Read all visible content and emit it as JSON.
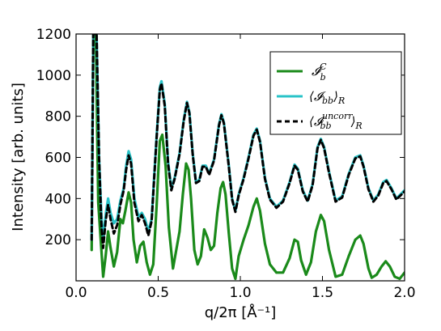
{
  "chart_data": {
    "type": "line",
    "xlabel": "q/2π [Å⁻¹]",
    "ylabel": "Intensity [arb. units]",
    "xlim": [
      0.0,
      2.0
    ],
    "ylim": [
      0,
      1200
    ],
    "x_ticks": [
      "0.0",
      "0.5",
      "1.0",
      "1.5",
      "2.0"
    ],
    "y_ticks": [
      "200",
      "400",
      "600",
      "800",
      "1000",
      "1200"
    ],
    "grid": false,
    "legend_position": "top-right",
    "series": [
      {
        "name": "𝓘_b^C",
        "legend_main": "𝓘",
        "legend_sup": "C",
        "legend_sub": "b",
        "color": "#1a8a1a",
        "style": "solid",
        "points": [
          [
            0.095,
            150
          ],
          [
            0.105,
            1200
          ],
          [
            0.12,
            1200
          ],
          [
            0.135,
            380
          ],
          [
            0.15,
            200
          ],
          [
            0.165,
            20
          ],
          [
            0.18,
            120
          ],
          [
            0.195,
            240
          ],
          [
            0.21,
            160
          ],
          [
            0.23,
            70
          ],
          [
            0.25,
            140
          ],
          [
            0.27,
            300
          ],
          [
            0.285,
            280
          ],
          [
            0.3,
            340
          ],
          [
            0.32,
            430
          ],
          [
            0.335,
            380
          ],
          [
            0.35,
            200
          ],
          [
            0.37,
            90
          ],
          [
            0.39,
            170
          ],
          [
            0.41,
            190
          ],
          [
            0.43,
            90
          ],
          [
            0.45,
            30
          ],
          [
            0.47,
            80
          ],
          [
            0.49,
            360
          ],
          [
            0.51,
            680
          ],
          [
            0.525,
            710
          ],
          [
            0.545,
            560
          ],
          [
            0.565,
            260
          ],
          [
            0.59,
            60
          ],
          [
            0.61,
            150
          ],
          [
            0.63,
            240
          ],
          [
            0.65,
            420
          ],
          [
            0.67,
            570
          ],
          [
            0.685,
            540
          ],
          [
            0.7,
            400
          ],
          [
            0.72,
            150
          ],
          [
            0.74,
            80
          ],
          [
            0.76,
            120
          ],
          [
            0.78,
            250
          ],
          [
            0.8,
            210
          ],
          [
            0.82,
            150
          ],
          [
            0.84,
            170
          ],
          [
            0.86,
            330
          ],
          [
            0.88,
            450
          ],
          [
            0.895,
            480
          ],
          [
            0.91,
            420
          ],
          [
            0.93,
            230
          ],
          [
            0.95,
            60
          ],
          [
            0.97,
            10
          ],
          [
            0.99,
            120
          ],
          [
            1.02,
            200
          ],
          [
            1.05,
            270
          ],
          [
            1.08,
            360
          ],
          [
            1.1,
            400
          ],
          [
            1.12,
            340
          ],
          [
            1.15,
            180
          ],
          [
            1.18,
            80
          ],
          [
            1.22,
            40
          ],
          [
            1.26,
            40
          ],
          [
            1.3,
            110
          ],
          [
            1.33,
            200
          ],
          [
            1.35,
            190
          ],
          [
            1.37,
            100
          ],
          [
            1.4,
            30
          ],
          [
            1.43,
            90
          ],
          [
            1.46,
            240
          ],
          [
            1.49,
            320
          ],
          [
            1.51,
            290
          ],
          [
            1.54,
            150
          ],
          [
            1.58,
            20
          ],
          [
            1.62,
            30
          ],
          [
            1.66,
            120
          ],
          [
            1.7,
            200
          ],
          [
            1.73,
            220
          ],
          [
            1.75,
            180
          ],
          [
            1.78,
            60
          ],
          [
            1.8,
            15
          ],
          [
            1.83,
            30
          ],
          [
            1.86,
            70
          ],
          [
            1.885,
            95
          ],
          [
            1.91,
            70
          ],
          [
            1.94,
            20
          ],
          [
            1.97,
            10
          ],
          [
            2.0,
            40
          ]
        ]
      },
      {
        "name": "⟨𝓘_bb⟩_R",
        "legend_main": "⟨𝓘",
        "legend_sub": "bb",
        "legend_close": "⟩",
        "legend_close_sub": "R",
        "color": "#29c3c8",
        "style": "solid",
        "points": [
          [
            0.095,
            200
          ],
          [
            0.105,
            1200
          ],
          [
            0.125,
            1200
          ],
          [
            0.14,
            600
          ],
          [
            0.155,
            300
          ],
          [
            0.165,
            200
          ],
          [
            0.18,
            320
          ],
          [
            0.195,
            400
          ],
          [
            0.21,
            330
          ],
          [
            0.23,
            280
          ],
          [
            0.25,
            300
          ],
          [
            0.27,
            390
          ],
          [
            0.29,
            450
          ],
          [
            0.305,
            560
          ],
          [
            0.32,
            630
          ],
          [
            0.335,
            590
          ],
          [
            0.355,
            400
          ],
          [
            0.38,
            310
          ],
          [
            0.4,
            330
          ],
          [
            0.42,
            300
          ],
          [
            0.44,
            240
          ],
          [
            0.46,
            300
          ],
          [
            0.49,
            700
          ],
          [
            0.51,
            940
          ],
          [
            0.52,
            970
          ],
          [
            0.54,
            860
          ],
          [
            0.56,
            580
          ],
          [
            0.58,
            450
          ],
          [
            0.6,
            500
          ],
          [
            0.63,
            620
          ],
          [
            0.655,
            780
          ],
          [
            0.675,
            870
          ],
          [
            0.69,
            820
          ],
          [
            0.71,
            620
          ],
          [
            0.73,
            480
          ],
          [
            0.75,
            490
          ],
          [
            0.77,
            560
          ],
          [
            0.79,
            560
          ],
          [
            0.81,
            520
          ],
          [
            0.84,
            590
          ],
          [
            0.87,
            760
          ],
          [
            0.885,
            810
          ],
          [
            0.9,
            770
          ],
          [
            0.93,
            560
          ],
          [
            0.95,
            400
          ],
          [
            0.97,
            340
          ],
          [
            0.99,
            420
          ],
          [
            1.02,
            500
          ],
          [
            1.05,
            600
          ],
          [
            1.08,
            710
          ],
          [
            1.1,
            740
          ],
          [
            1.12,
            680
          ],
          [
            1.15,
            500
          ],
          [
            1.18,
            400
          ],
          [
            1.22,
            360
          ],
          [
            1.26,
            390
          ],
          [
            1.3,
            480
          ],
          [
            1.33,
            565
          ],
          [
            1.35,
            545
          ],
          [
            1.38,
            440
          ],
          [
            1.41,
            390
          ],
          [
            1.44,
            470
          ],
          [
            1.47,
            650
          ],
          [
            1.49,
            690
          ],
          [
            1.51,
            650
          ],
          [
            1.54,
            530
          ],
          [
            1.58,
            390
          ],
          [
            1.62,
            410
          ],
          [
            1.66,
            520
          ],
          [
            1.7,
            600
          ],
          [
            1.73,
            610
          ],
          [
            1.75,
            560
          ],
          [
            1.78,
            450
          ],
          [
            1.81,
            390
          ],
          [
            1.84,
            420
          ],
          [
            1.87,
            480
          ],
          [
            1.89,
            490
          ],
          [
            1.92,
            450
          ],
          [
            1.95,
            400
          ],
          [
            1.975,
            420
          ],
          [
            2.0,
            440
          ]
        ]
      },
      {
        "name": "⟨𝓘_bb^uncorr⟩_R",
        "legend_main": "⟨𝓘",
        "legend_sup": "uncorr",
        "legend_sub": "bb",
        "legend_close": "⟩",
        "legend_close_sub": "R",
        "color": "#000000",
        "style": "dashed",
        "points": [
          [
            0.095,
            200
          ],
          [
            0.105,
            1200
          ],
          [
            0.125,
            1200
          ],
          [
            0.14,
            600
          ],
          [
            0.155,
            260
          ],
          [
            0.165,
            160
          ],
          [
            0.18,
            290
          ],
          [
            0.195,
            370
          ],
          [
            0.21,
            300
          ],
          [
            0.23,
            230
          ],
          [
            0.25,
            270
          ],
          [
            0.27,
            370
          ],
          [
            0.29,
            440
          ],
          [
            0.305,
            540
          ],
          [
            0.32,
            610
          ],
          [
            0.335,
            570
          ],
          [
            0.355,
            380
          ],
          [
            0.38,
            290
          ],
          [
            0.4,
            320
          ],
          [
            0.42,
            280
          ],
          [
            0.44,
            220
          ],
          [
            0.46,
            290
          ],
          [
            0.49,
            690
          ],
          [
            0.51,
            930
          ],
          [
            0.52,
            960
          ],
          [
            0.54,
            850
          ],
          [
            0.56,
            570
          ],
          [
            0.58,
            440
          ],
          [
            0.6,
            495
          ],
          [
            0.63,
            615
          ],
          [
            0.655,
            775
          ],
          [
            0.675,
            865
          ],
          [
            0.69,
            815
          ],
          [
            0.71,
            615
          ],
          [
            0.73,
            475
          ],
          [
            0.75,
            485
          ],
          [
            0.77,
            555
          ],
          [
            0.79,
            555
          ],
          [
            0.81,
            515
          ],
          [
            0.84,
            585
          ],
          [
            0.87,
            755
          ],
          [
            0.885,
            805
          ],
          [
            0.9,
            765
          ],
          [
            0.93,
            555
          ],
          [
            0.95,
            395
          ],
          [
            0.97,
            335
          ],
          [
            0.99,
            415
          ],
          [
            1.02,
            495
          ],
          [
            1.05,
            595
          ],
          [
            1.08,
            705
          ],
          [
            1.1,
            735
          ],
          [
            1.12,
            675
          ],
          [
            1.15,
            495
          ],
          [
            1.18,
            395
          ],
          [
            1.22,
            355
          ],
          [
            1.26,
            385
          ],
          [
            1.3,
            475
          ],
          [
            1.33,
            560
          ],
          [
            1.35,
            540
          ],
          [
            1.38,
            435
          ],
          [
            1.41,
            385
          ],
          [
            1.44,
            465
          ],
          [
            1.47,
            645
          ],
          [
            1.49,
            685
          ],
          [
            1.51,
            645
          ],
          [
            1.54,
            525
          ],
          [
            1.58,
            385
          ],
          [
            1.62,
            405
          ],
          [
            1.66,
            515
          ],
          [
            1.7,
            595
          ],
          [
            1.73,
            605
          ],
          [
            1.75,
            555
          ],
          [
            1.78,
            445
          ],
          [
            1.81,
            385
          ],
          [
            1.84,
            415
          ],
          [
            1.87,
            475
          ],
          [
            1.89,
            485
          ],
          [
            1.92,
            445
          ],
          [
            1.95,
            395
          ],
          [
            1.975,
            415
          ],
          [
            2.0,
            435
          ]
        ]
      }
    ]
  }
}
